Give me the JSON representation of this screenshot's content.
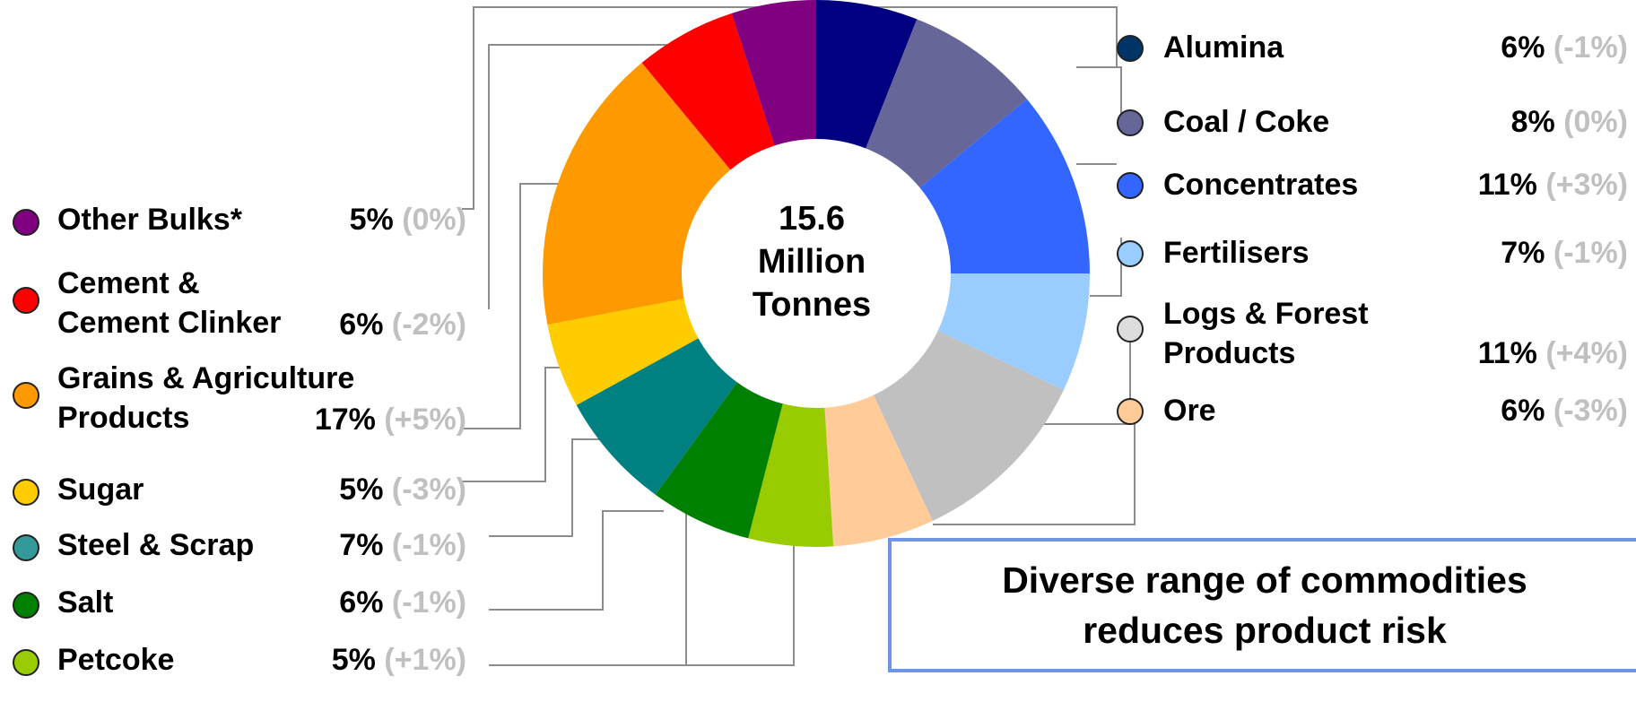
{
  "chart_data": {
    "type": "pie",
    "variant": "donut",
    "center_label": "15.6\nMillion\nTonnes",
    "categories": [
      "Alumina",
      "Coal / Coke",
      "Concentrates",
      "Fertilisers",
      "Logs & Forest Products",
      "Ore",
      "Petcoke",
      "Salt",
      "Steel & Scrap",
      "Sugar",
      "Grains & Agriculture Products",
      "Cement & Cement Clinker",
      "Other Bulks*"
    ],
    "values": [
      6,
      8,
      11,
      7,
      11,
      6,
      5,
      6,
      7,
      5,
      17,
      6,
      5
    ],
    "labels": [
      "6%",
      "8%",
      "11%",
      "7%",
      "11%",
      "6%",
      "5%",
      "6%",
      "7%",
      "5%",
      "17%",
      "6%",
      "5%"
    ],
    "changes": [
      "(-1%)",
      "(0%)",
      "(+3%)",
      "(-1%)",
      "(+4%)",
      "(-3%)",
      "(+1%)",
      "(-1%)",
      "(-1%)",
      "(-3%)",
      "(+5%)",
      "(-2%)",
      "(0%)"
    ],
    "colors": [
      "#000080",
      "#666699",
      "#3366ff",
      "#99ccff",
      "#c0c0c0",
      "#ffcc99",
      "#99cc00",
      "#008000",
      "#008080",
      "#ffcc00",
      "#ff9900",
      "#ff0000",
      "#800080"
    ]
  },
  "legend_right": [
    {
      "name": "Alumina",
      "pct": "6%",
      "chg": "(-1%)",
      "color": "#003366"
    },
    {
      "name": "Coal / Coke",
      "pct": "8%",
      "chg": "(0%)",
      "color": "#666699"
    },
    {
      "name": "Concentrates",
      "pct": "11%",
      "chg": "(+3%)",
      "color": "#3366ff"
    },
    {
      "name": "Fertilisers",
      "pct": "7%",
      "chg": "(-1%)",
      "color": "#99ccff"
    },
    {
      "name": "Logs & Forest\nProducts",
      "pct": "11%",
      "chg": "(+4%)",
      "color": "#dddddd"
    },
    {
      "name": "Ore",
      "pct": "6%",
      "chg": "(-3%)",
      "color": "#ffcc99"
    }
  ],
  "legend_left": [
    {
      "name": "Other Bulks*",
      "pct": "5%",
      "chg": "(0%)",
      "color": "#800080"
    },
    {
      "name": "Cement &\nCement Clinker",
      "pct": "6%",
      "chg": "(-2%)",
      "color": "#ff0000"
    },
    {
      "name": "Grains & Agriculture\nProducts",
      "pct": "17%",
      "chg": "(+5%)",
      "color": "#ff9900"
    },
    {
      "name": "Sugar",
      "pct": "5%",
      "chg": "(-3%)",
      "color": "#ffcc00"
    },
    {
      "name": "Steel & Scrap",
      "pct": "7%",
      "chg": "(-1%)",
      "color": "#339999"
    },
    {
      "name": "Salt",
      "pct": "6%",
      "chg": "(-1%)",
      "color": "#008000"
    },
    {
      "name": "Petcoke",
      "pct": "5%",
      "chg": "(+1%)",
      "color": "#99cc00"
    }
  ],
  "callout": "Diverse range of commodities\nreduces product risk"
}
